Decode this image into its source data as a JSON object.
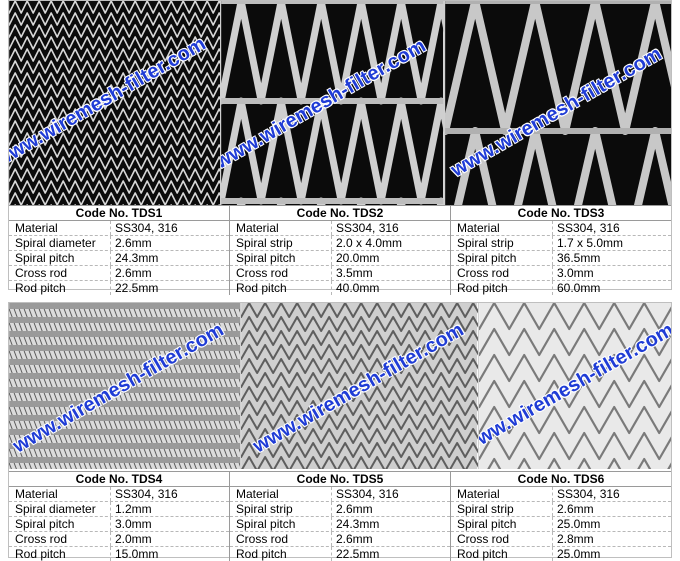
{
  "watermark": "www.wiremesh-filter.com",
  "colors": {
    "watermark": "#1f3cd6",
    "mesh_dark_bg": "#0b0b0b",
    "wire": "#d9d9d9"
  },
  "products": [
    {
      "code": "Code No. TDS1",
      "mesh_style": "fine-spiral-dark",
      "specs": [
        {
          "label": "Material",
          "value": "SS304, 316"
        },
        {
          "label": "Spiral diameter",
          "value": "2.6mm"
        },
        {
          "label": "Spiral pitch",
          "value": "24.3mm"
        },
        {
          "label": "Cross rod",
          "value": "2.6mm"
        },
        {
          "label": "Rod pitch",
          "value": "22.5mm"
        }
      ]
    },
    {
      "code": "Code No. TDS2",
      "mesh_style": "flat-strip-dark",
      "specs": [
        {
          "label": "Material",
          "value": "SS304, 316"
        },
        {
          "label": "Spiral strip",
          "value": "2.0 x 4.0mm"
        },
        {
          "label": "Spiral pitch",
          "value": "20.0mm"
        },
        {
          "label": "Cross rod",
          "value": "3.5mm"
        },
        {
          "label": "Rod pitch",
          "value": "40.0mm"
        }
      ]
    },
    {
      "code": "Code No. TDS3",
      "mesh_style": "wide-strip-dark",
      "specs": [
        {
          "label": "Material",
          "value": "SS304, 316"
        },
        {
          "label": "Spiral strip",
          "value": "1.7 x 5.0mm"
        },
        {
          "label": "Spiral pitch",
          "value": "36.5mm"
        },
        {
          "label": "Cross rod",
          "value": "3.0mm"
        },
        {
          "label": "Rod pitch",
          "value": "60.0mm"
        }
      ]
    },
    {
      "code": "Code No. TDS4",
      "mesh_style": "coil-rows-light",
      "specs": [
        {
          "label": "Material",
          "value": "SS304, 316"
        },
        {
          "label": "Spiral diameter",
          "value": "1.2mm"
        },
        {
          "label": "Spiral pitch",
          "value": "3.0mm"
        },
        {
          "label": "Cross rod",
          "value": "2.0mm"
        },
        {
          "label": "Rod pitch",
          "value": "15.0mm"
        }
      ]
    },
    {
      "code": "Code No. TDS5",
      "mesh_style": "chain-link-grey",
      "specs": [
        {
          "label": "Material",
          "value": "SS304, 316"
        },
        {
          "label": "Spiral strip",
          "value": "2.6mm"
        },
        {
          "label": "Spiral pitch",
          "value": "24.3mm"
        },
        {
          "label": "Cross rod",
          "value": "2.6mm"
        },
        {
          "label": "Rod pitch",
          "value": "22.5mm"
        }
      ]
    },
    {
      "code": "Code No. TDS6",
      "mesh_style": "loose-chain-white",
      "specs": [
        {
          "label": "Material",
          "value": "SS304, 316"
        },
        {
          "label": "Spiral strip",
          "value": "2.6mm"
        },
        {
          "label": "Spiral pitch",
          "value": "25.0mm"
        },
        {
          "label": "Cross rod",
          "value": "2.8mm"
        },
        {
          "label": "Rod pitch",
          "value": "25.0mm"
        }
      ]
    }
  ]
}
